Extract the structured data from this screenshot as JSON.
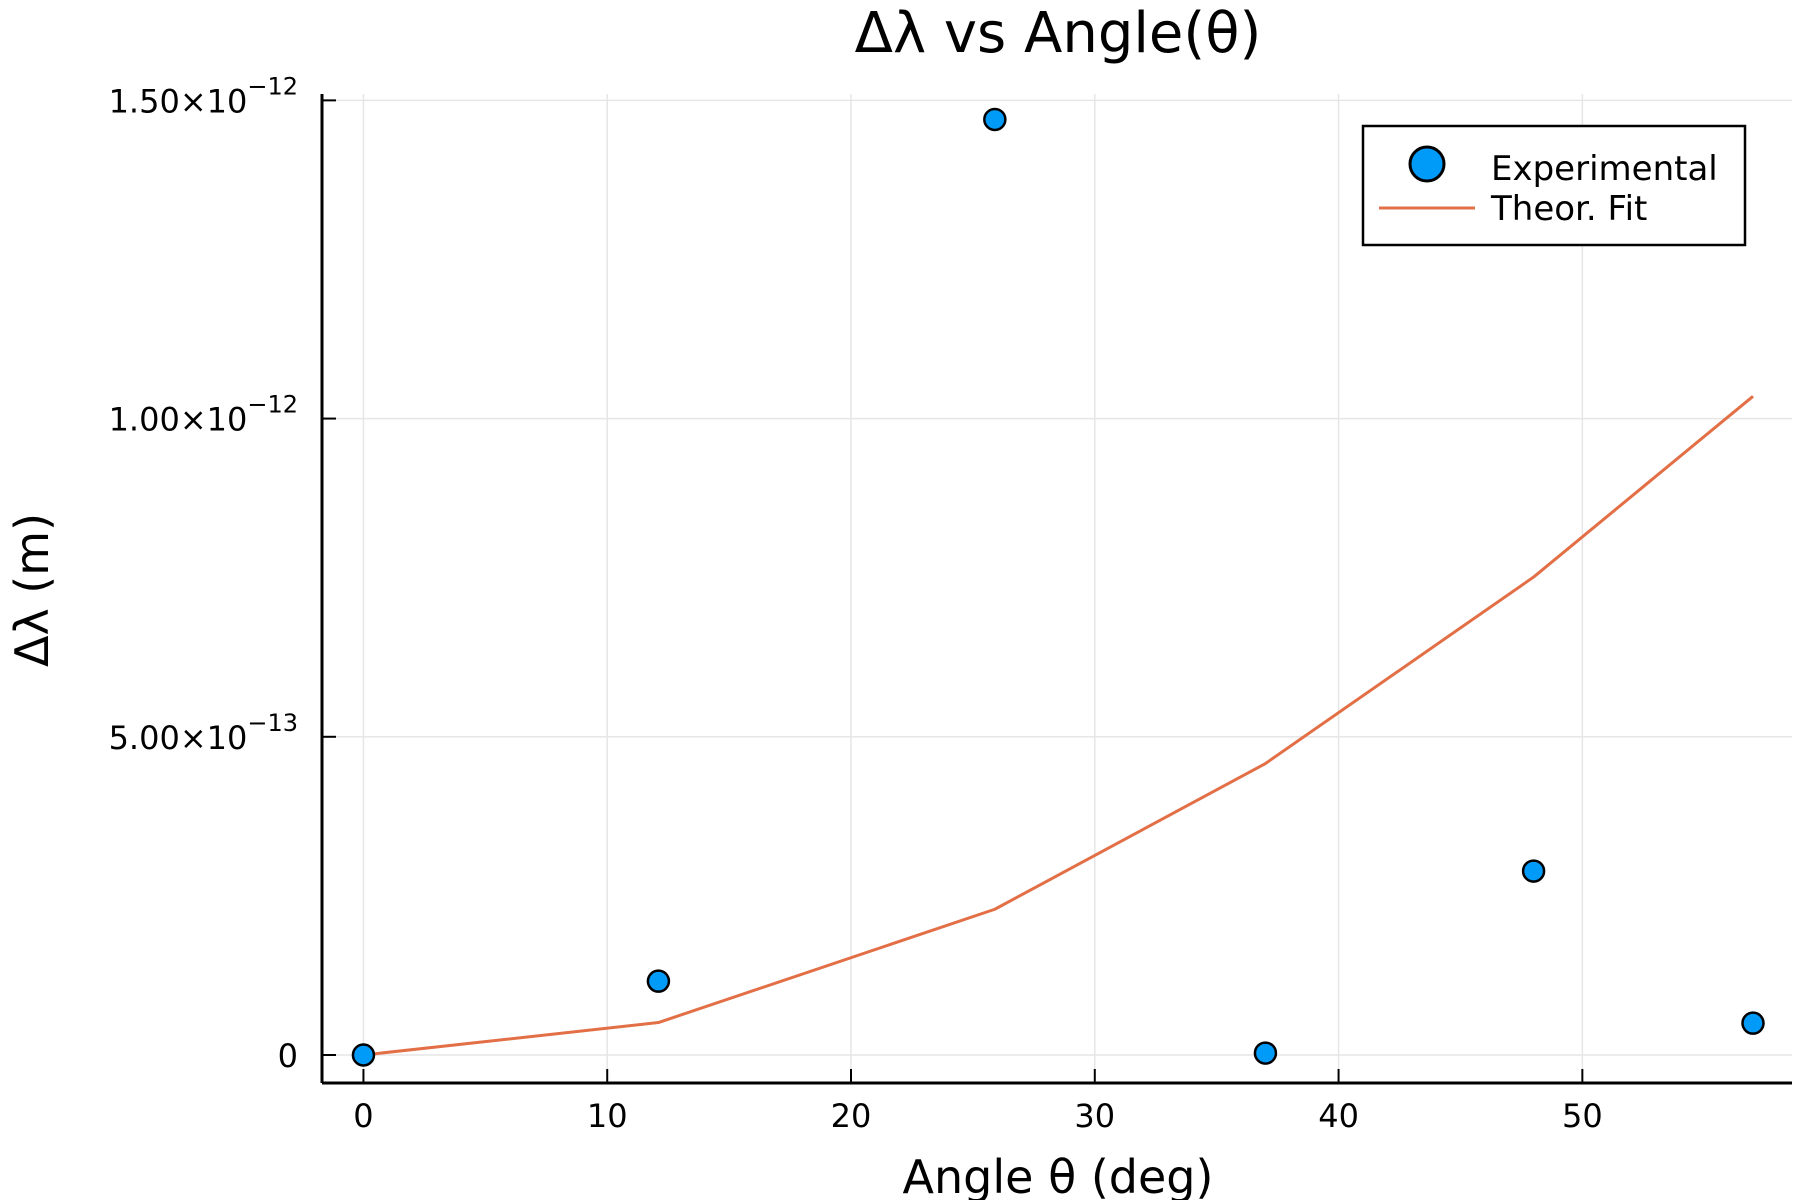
{
  "chart_data": {
    "type": "scatter",
    "title": "Δλ vs Angle(θ)",
    "xlabel": "Angle θ (deg)",
    "ylabel": "Δλ (m)",
    "xlim": [
      -1.7,
      58.6
    ],
    "ylim": [
      -4.4e-14,
      1.51e-12
    ],
    "x_ticks": [
      {
        "value": 0,
        "label": "0"
      },
      {
        "value": 10,
        "label": "10"
      },
      {
        "value": 20,
        "label": "20"
      },
      {
        "value": 30,
        "label": "30"
      },
      {
        "value": 40,
        "label": "40"
      },
      {
        "value": 50,
        "label": "50"
      }
    ],
    "y_ticks": [
      {
        "value": 0,
        "mantissa": "0",
        "exponent": ""
      },
      {
        "value": 5e-13,
        "mantissa": "5.00×10",
        "exponent": "−13"
      },
      {
        "value": 1e-12,
        "mantissa": "1.00×10",
        "exponent": "−12"
      },
      {
        "value": 1.5e-12,
        "mantissa": "1.50×10",
        "exponent": "−12"
      }
    ],
    "grid": true,
    "legend_position": "top-right",
    "series": [
      {
        "name": "Experimental",
        "kind": "scatter",
        "color": "#009af9",
        "x": [
          0,
          12.1,
          25.9,
          37.0,
          48.0,
          57.0
        ],
        "y": [
          0,
          1.16e-13,
          1.47e-12,
          3e-15,
          2.89e-13,
          5e-14
        ]
      },
      {
        "name": "Theor. Fit",
        "kind": "line",
        "color": "#e26f46",
        "x": [
          0,
          12.1,
          25.9,
          37.0,
          48.0,
          57.0
        ],
        "y": [
          0,
          5.1e-14,
          2.29e-13,
          4.58e-13,
          7.51e-13,
          1.035e-12
        ]
      }
    ]
  }
}
